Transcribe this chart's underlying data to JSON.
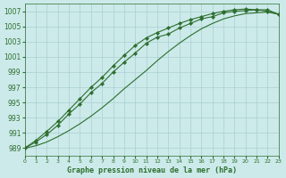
{
  "title": "Graphe pression niveau de la mer (hPa)",
  "bg_color": "#cceaea",
  "grid_color": "#aacfcf",
  "line_color": "#2d6e2d",
  "xlim": [
    0,
    23
  ],
  "ylim": [
    988,
    1008
  ],
  "yticks": [
    989,
    991,
    993,
    995,
    997,
    999,
    1001,
    1003,
    1005,
    1007
  ],
  "xticks": [
    0,
    1,
    2,
    3,
    4,
    5,
    6,
    7,
    8,
    9,
    10,
    11,
    12,
    13,
    14,
    15,
    16,
    17,
    18,
    19,
    20,
    21,
    22,
    23
  ],
  "line1_x": [
    0,
    1,
    2,
    3,
    4,
    5,
    6,
    7,
    8,
    9,
    10,
    11,
    12,
    13,
    14,
    15,
    16,
    17,
    18,
    19,
    20,
    21,
    22,
    23
  ],
  "line1_y": [
    989.0,
    989.8,
    990.8,
    992.0,
    993.5,
    994.8,
    996.3,
    997.5,
    999.0,
    1000.3,
    1001.5,
    1002.8,
    1003.6,
    1004.0,
    1004.8,
    1005.4,
    1006.0,
    1006.3,
    1006.8,
    1007.0,
    1007.1,
    1007.2,
    1007.2,
    1006.6
  ],
  "line2_x": [
    0,
    1,
    2,
    3,
    4,
    5,
    6,
    7,
    8,
    9,
    10,
    11,
    12,
    13,
    14,
    15,
    16,
    17,
    18,
    19,
    20,
    21,
    22,
    23
  ],
  "line2_y": [
    989.0,
    990.0,
    991.2,
    992.5,
    994.0,
    995.5,
    997.0,
    998.3,
    999.8,
    1001.2,
    1002.5,
    1003.5,
    1004.2,
    1004.8,
    1005.4,
    1005.9,
    1006.3,
    1006.7,
    1007.0,
    1007.2,
    1007.3,
    1007.2,
    1007.0,
    1006.6
  ],
  "line3_x": [
    0,
    1,
    2,
    3,
    4,
    5,
    6,
    7,
    8,
    9,
    10,
    11,
    12,
    13,
    14,
    15,
    16,
    17,
    18,
    19,
    20,
    21,
    22,
    23
  ],
  "line3_y": [
    989.0,
    989.3,
    989.8,
    990.5,
    991.3,
    992.2,
    993.2,
    994.3,
    995.5,
    996.8,
    998.0,
    999.2,
    1000.5,
    1001.7,
    1002.8,
    1003.8,
    1004.7,
    1005.4,
    1006.0,
    1006.4,
    1006.7,
    1006.8,
    1006.9,
    1006.6
  ]
}
